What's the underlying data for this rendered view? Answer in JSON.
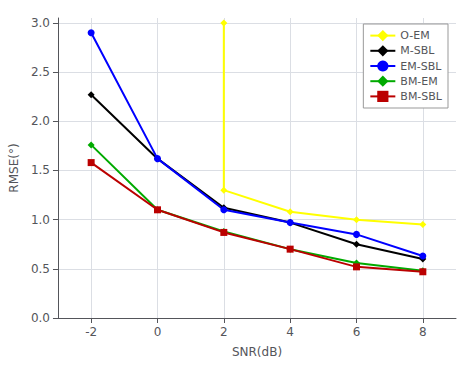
{
  "chart_data": {
    "type": "line",
    "xlabel": "SNR(dB)",
    "ylabel": "RMSE(°)",
    "series": [
      {
        "name": "O-EM",
        "color": "#ffff00",
        "marker": "diamond",
        "x": [
          2,
          2,
          4,
          6,
          8
        ],
        "values": [
          3.0,
          1.3,
          1.08,
          1.0,
          0.95
        ]
      },
      {
        "name": "M-SBL",
        "color": "#000000",
        "marker": "diamond",
        "x": [
          -2,
          0,
          2,
          4,
          6,
          8
        ],
        "values": [
          2.27,
          1.62,
          1.12,
          0.97,
          0.75,
          0.6
        ]
      },
      {
        "name": "EM-SBL",
        "color": "#0000ff",
        "marker": "circle",
        "x": [
          -2,
          0,
          2,
          4,
          6,
          8
        ],
        "values": [
          2.9,
          1.62,
          1.1,
          0.97,
          0.85,
          0.63
        ]
      },
      {
        "name": "BM-EM",
        "color": "#00aa00",
        "marker": "diamond",
        "x": [
          -2,
          0,
          2,
          4,
          6,
          8
        ],
        "values": [
          1.76,
          1.1,
          0.88,
          0.7,
          0.56,
          0.48
        ]
      },
      {
        "name": "BM-SBL",
        "color": "#bb0000",
        "marker": "square",
        "x": [
          -2,
          0,
          2,
          4,
          6,
          8
        ],
        "values": [
          1.58,
          1.1,
          0.87,
          0.7,
          0.52,
          0.47
        ]
      }
    ],
    "xlim": [
      -3,
      9
    ],
    "xticks": [
      -2,
      0,
      2,
      4,
      6,
      8
    ],
    "ylim": [
      0,
      3.05
    ],
    "yticks": [
      {
        "value": 0,
        "label": "0.0"
      },
      0.5,
      {
        "value": 1.0,
        "label": "1.0"
      },
      1.5,
      {
        "value": 2.0,
        "label": "2.0"
      },
      2.5,
      {
        "value": 3.0,
        "label": "3.0"
      }
    ],
    "grid": true,
    "legend": "upper right"
  }
}
